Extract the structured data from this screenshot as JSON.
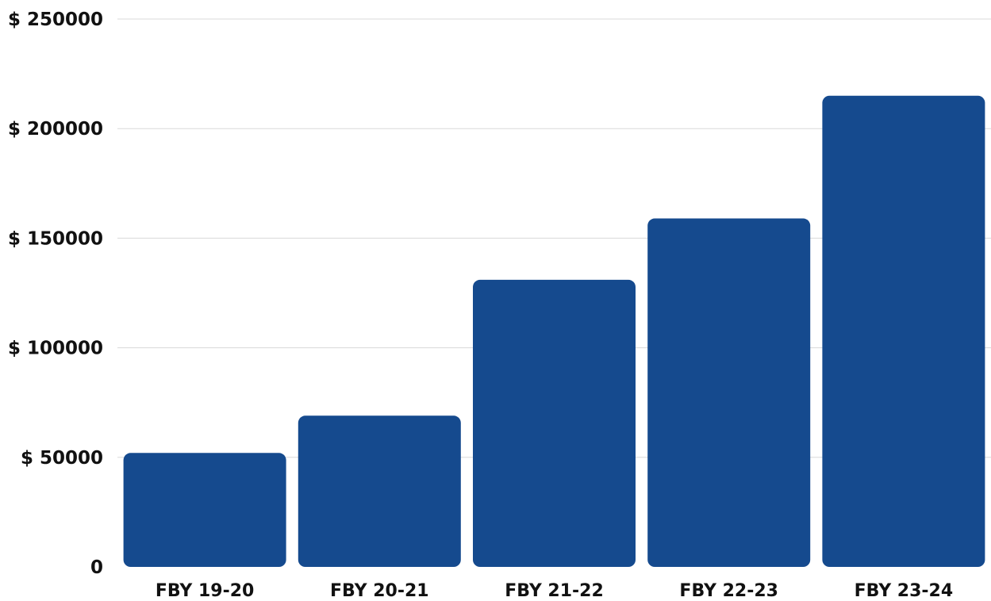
{
  "chart_data": {
    "type": "bar",
    "title": "",
    "xlabel": "",
    "ylabel": "",
    "categories": [
      "FBY 19-20",
      "FBY 20-21",
      "FBY 21-22",
      "FBY 22-23",
      "FBY 23-24"
    ],
    "values": [
      52000,
      69000,
      131000,
      159000,
      215000
    ],
    "ylim": [
      0,
      250000
    ],
    "y_ticks": [
      {
        "value": 0,
        "label": "0"
      },
      {
        "value": 50000,
        "label": "$ 50000"
      },
      {
        "value": 100000,
        "label": "$ 100000"
      },
      {
        "value": 150000,
        "label": "$ 150000"
      },
      {
        "value": 200000,
        "label": "$ 200000"
      },
      {
        "value": 250000,
        "label": "$ 250000"
      }
    ],
    "grid": true,
    "legend": "none",
    "bar_color": "#154a8e"
  }
}
